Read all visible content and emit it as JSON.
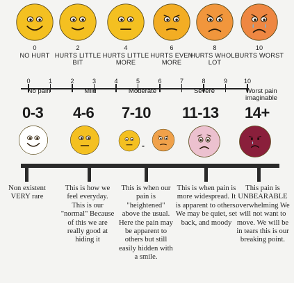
{
  "top_scale": {
    "faces": [
      {
        "number": "0",
        "label": "NO HURT",
        "icon": "smiling-face-icon",
        "color": "#f4c021"
      },
      {
        "number": "2",
        "label": "HURTS LITTLE BIT",
        "icon": "slight-smile-face-icon",
        "color": "#f4c021"
      },
      {
        "number": "4",
        "label": "HURTS LITTLE MORE",
        "icon": "neutral-face-icon",
        "color": "#f4c021"
      },
      {
        "number": "6",
        "label": "HURTS EVEN MORE",
        "icon": "frown-face-icon",
        "color": "#f3ad23"
      },
      {
        "number": "8",
        "label": "HURTS WHOLE LOT",
        "icon": "sad-face-icon",
        "color": "#f1963c"
      },
      {
        "number": "10",
        "label": "HURTS WORST",
        "icon": "crying-face-icon",
        "color": "#ee8742"
      }
    ]
  },
  "numeric_scale": {
    "ticks": [
      "0",
      "1",
      "2",
      "3",
      "4",
      "5",
      "6",
      "7",
      "8",
      "9",
      "10"
    ],
    "categories": [
      "No pain",
      "Mild",
      "Moderate",
      "Severe",
      "Worst pain imaginable"
    ]
  },
  "ranges": [
    {
      "label": "0-3",
      "icon": "smiling-face-icon",
      "color": "#ffffff",
      "description": "Non existent VERY rare"
    },
    {
      "label": "4-6",
      "icon": "neutral-face-icon",
      "color": "#f4c021",
      "description": "This is how we feel everyday. This is our \"normal\" Because of this we are really good at hiding it"
    },
    {
      "label": "7-10",
      "icon": "pair-of-faces-icon",
      "color": "#f4c021",
      "color2": "#f0a14a",
      "description": "This is when our pain is \"heightened\" above the usual. Here the pain may be apparent to others but still easily hidden with a smile."
    },
    {
      "label": "11-13",
      "icon": "worried-face-icon",
      "color": "#ecc1cf",
      "description": "This is when pain is more widespread. It is apparent to others. We may be quiet, set back, and moody"
    },
    {
      "label": "14+",
      "icon": "distressed-face-icon",
      "color": "#8a1f3b",
      "description": "This pain is UNBEARABLE overwhelming We will not want to move. We will be in tears this is our breaking point."
    }
  ],
  "dash_text": "-"
}
